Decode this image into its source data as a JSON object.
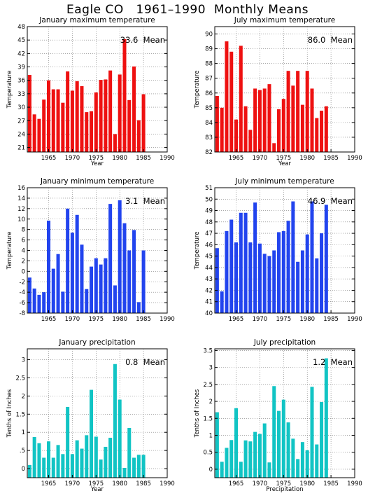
{
  "page_title": "Eagle CO   1961–1990  Monthly Means",
  "colors": {
    "red": "#ee1111",
    "blue": "#2244ee",
    "cyan": "#11c4c4",
    "grid": "#777777"
  },
  "chart_data": [
    {
      "type": "bar",
      "title": "January maximum temperature",
      "xlabel": "Year",
      "ylabel": "Temperature",
      "mean_label": "33.6  Mean",
      "color": "red",
      "xlim": [
        1960.5,
        1990
      ],
      "xticks": [
        1965,
        1970,
        1975,
        1980,
        1985,
        1990
      ],
      "ylim": [
        20,
        48
      ],
      "yticks": [
        21,
        24,
        27,
        30,
        33,
        36,
        39,
        42,
        45,
        48
      ],
      "x": [
        1961,
        1962,
        1963,
        1964,
        1965,
        1966,
        1967,
        1968,
        1969,
        1970,
        1971,
        1972,
        1973,
        1974,
        1975,
        1976,
        1977,
        1978,
        1979,
        1980,
        1981,
        1982,
        1983,
        1984,
        1985
      ],
      "values": [
        37.2,
        28.4,
        27.4,
        31.7,
        36.0,
        34.0,
        34.0,
        31.0,
        38.0,
        33.7,
        35.8,
        34.7,
        28.9,
        29.1,
        33.3,
        36.1,
        36.2,
        38.2,
        24.0,
        37.3,
        45.2,
        31.6,
        39.1,
        27.1,
        32.9
      ]
    },
    {
      "type": "bar",
      "title": "July maximum temperature",
      "xlabel": "Year",
      "ylabel": "Temperature",
      "mean_label": "86.0  Mean",
      "color": "red",
      "xlim": [
        1960.5,
        1990
      ],
      "xticks": [
        1965,
        1970,
        1975,
        1980,
        1985,
        1990
      ],
      "ylim": [
        82,
        90.5
      ],
      "yticks": [
        82,
        83,
        84,
        85,
        86,
        87,
        88,
        89,
        90
      ],
      "x": [
        1961,
        1962,
        1963,
        1964,
        1965,
        1966,
        1967,
        1968,
        1969,
        1970,
        1971,
        1972,
        1973,
        1974,
        1975,
        1976,
        1977,
        1978,
        1979,
        1980,
        1981,
        1982,
        1983,
        1984
      ],
      "values": [
        85.8,
        85.0,
        89.5,
        88.8,
        84.2,
        89.2,
        85.1,
        83.5,
        86.3,
        86.2,
        86.3,
        86.6,
        82.6,
        84.9,
        85.6,
        87.5,
        86.5,
        87.5,
        85.2,
        87.5,
        86.3,
        84.3,
        84.8,
        85.1
      ]
    },
    {
      "type": "bar",
      "title": "January minimum temperature",
      "xlabel": "",
      "ylabel": "Temperature",
      "mean_label": "3.1  Mean",
      "color": "blue",
      "xlim": [
        1960.5,
        1990
      ],
      "xticks": [
        1965,
        1970,
        1975,
        1980,
        1985,
        1990
      ],
      "ylim": [
        -8,
        16
      ],
      "yticks": [
        -8,
        -6,
        -4,
        -2,
        0,
        2,
        4,
        6,
        8,
        10,
        12,
        14,
        16
      ],
      "x": [
        1961,
        1962,
        1963,
        1964,
        1965,
        1966,
        1967,
        1968,
        1969,
        1970,
        1971,
        1972,
        1973,
        1974,
        1975,
        1976,
        1977,
        1978,
        1979,
        1980,
        1981,
        1982,
        1983,
        1984,
        1985
      ],
      "values": [
        -1.2,
        -3.3,
        -4.5,
        -4.0,
        9.7,
        0.5,
        3.3,
        -3.9,
        12.0,
        7.4,
        10.8,
        5.1,
        -3.4,
        0.9,
        2.5,
        1.3,
        2.5,
        12.9,
        -2.7,
        13.6,
        9.2,
        4.0,
        7.9,
        -5.9,
        4.0
      ]
    },
    {
      "type": "bar",
      "title": "July minimum temperature",
      "xlabel": "",
      "ylabel": "Temperature",
      "mean_label": "46.9  Mean",
      "color": "blue",
      "xlim": [
        1960.5,
        1990
      ],
      "xticks": [
        1965,
        1970,
        1975,
        1980,
        1985,
        1990
      ],
      "ylim": [
        40,
        51
      ],
      "yticks": [
        40,
        41,
        42,
        43,
        44,
        45,
        46,
        47,
        48,
        49,
        50,
        51
      ],
      "x": [
        1961,
        1962,
        1963,
        1964,
        1965,
        1966,
        1967,
        1968,
        1969,
        1970,
        1971,
        1972,
        1973,
        1974,
        1975,
        1976,
        1977,
        1978,
        1979,
        1980,
        1981,
        1982,
        1983,
        1984
      ],
      "values": [
        45.7,
        41.9,
        47.2,
        48.2,
        46.2,
        48.8,
        48.8,
        46.2,
        49.7,
        46.1,
        45.2,
        45.0,
        45.5,
        47.1,
        47.2,
        48.1,
        49.8,
        44.5,
        45.5,
        46.9,
        49.8,
        44.8,
        47.0,
        49.5
      ]
    },
    {
      "type": "bar",
      "title": "January precipitation",
      "xlabel": "Year",
      "ylabel": "Tenths of Inches",
      "mean_label": "0.8  Mean",
      "color": "cyan",
      "xlim": [
        1960.5,
        1990
      ],
      "xticks": [
        1965,
        1970,
        1975,
        1980,
        1985,
        1990
      ],
      "ylim": [
        -0.25,
        3.3
      ],
      "yticks": [
        0,
        0.5,
        1,
        1.5,
        2,
        2.5,
        3
      ],
      "ytick_labels": [
        "0",
        ".5",
        "1",
        "1.5",
        "2",
        "2.5",
        "3"
      ],
      "x": [
        1961,
        1962,
        1963,
        1964,
        1965,
        1966,
        1967,
        1968,
        1969,
        1970,
        1971,
        1972,
        1973,
        1974,
        1975,
        1976,
        1977,
        1978,
        1979,
        1980,
        1981,
        1982,
        1983,
        1984,
        1985
      ],
      "values": [
        0.1,
        0.87,
        0.7,
        0.3,
        0.75,
        0.3,
        0.65,
        0.4,
        1.7,
        0.4,
        0.78,
        0.55,
        0.92,
        2.17,
        0.88,
        0.25,
        0.6,
        0.85,
        2.88,
        1.9,
        0.02,
        1.12,
        0.3,
        0.38,
        0.38
      ]
    },
    {
      "type": "bar",
      "title": "July precipitation",
      "xlabel": "Precipitation",
      "ylabel": "Tenths of Inches",
      "mean_label": "1.2  Mean",
      "color": "cyan",
      "xlim": [
        1960.5,
        1990
      ],
      "xticks": [
        1965,
        1970,
        1975,
        1980,
        1985,
        1990
      ],
      "ylim": [
        -0.25,
        3.55
      ],
      "yticks": [
        0,
        0.5,
        1,
        1.5,
        2,
        2.5,
        3,
        3.5
      ],
      "ytick_labels": [
        "0",
        "0.5",
        "1",
        "1.5",
        "2",
        "2.5",
        "3",
        "3.5"
      ],
      "x": [
        1961,
        1962,
        1963,
        1964,
        1965,
        1966,
        1967,
        1968,
        1969,
        1970,
        1971,
        1972,
        1973,
        1974,
        1975,
        1976,
        1977,
        1978,
        1979,
        1980,
        1981,
        1982,
        1983,
        1984
      ],
      "values": [
        1.68,
        0.22,
        0.63,
        0.86,
        1.8,
        0.22,
        0.85,
        0.82,
        1.1,
        1.04,
        1.35,
        0.2,
        2.45,
        1.72,
        2.05,
        1.38,
        0.9,
        0.3,
        0.8,
        0.56,
        2.43,
        0.73,
        1.98,
        3.27
      ]
    }
  ]
}
